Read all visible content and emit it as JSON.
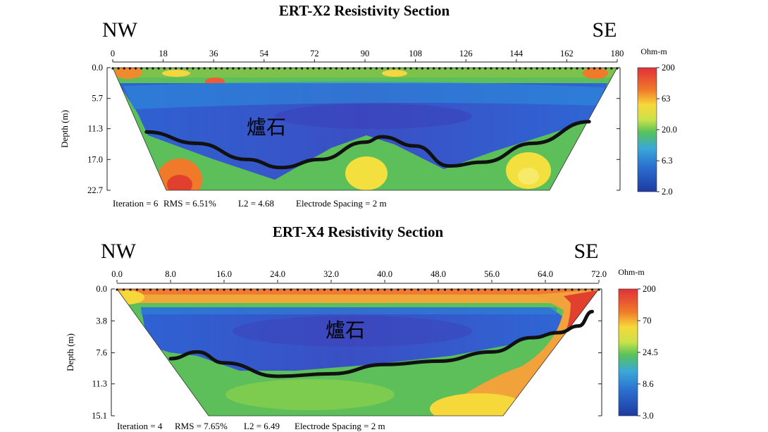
{
  "chart_data": [
    {
      "type": "heatmap",
      "title": "ERT-X2 Resistivity Section",
      "left_direction": "NW",
      "right_direction": "SE",
      "x_ticks": [
        "0",
        "18",
        "36",
        "54",
        "72",
        "90",
        "108",
        "126",
        "144",
        "162",
        "180"
      ],
      "x_range": [
        0,
        180
      ],
      "ylabel": "Depth (m)",
      "y_ticks": [
        "0.0",
        "5.7",
        "11.3",
        "17.0",
        "22.7"
      ],
      "y_range": [
        0.0,
        22.7
      ],
      "colorbar_units": "Ohm-m",
      "colorbar_ticks": [
        "200",
        "63",
        "20.0",
        "6.3",
        "2.0"
      ],
      "colorbar_range": [
        2.0,
        200
      ],
      "colorbar_scale": "log",
      "annotation": "爐石",
      "footer": [
        "Iteration = 6",
        "RMS = 6.51%",
        "L2 = 4.68",
        "Electrode Spacing = 2 m"
      ],
      "boundary_line": {
        "x": [
          12,
          30,
          48,
          60,
          74,
          90,
          96,
          108,
          120,
          132,
          150,
          170
        ],
        "y": [
          11.9,
          14.0,
          17.0,
          18.5,
          17.0,
          13.8,
          12.8,
          14.5,
          18.2,
          17.5,
          14.0,
          10.0
        ]
      }
    },
    {
      "type": "heatmap",
      "title": "ERT-X4 Resistivity Section",
      "left_direction": "NW",
      "right_direction": "SE",
      "x_ticks": [
        "0.0",
        "8.0",
        "16.0",
        "24.0",
        "32.0",
        "40.0",
        "48.0",
        "56.0",
        "64.0",
        "72.0"
      ],
      "x_range": [
        0,
        72
      ],
      "ylabel": "Depth (m)",
      "y_ticks": [
        "0.0",
        "3.8",
        "7.6",
        "11.3",
        "15.1"
      ],
      "y_range": [
        0.0,
        15.1
      ],
      "colorbar_units": "Ohm-m",
      "colorbar_ticks": [
        "200",
        "70",
        "24.5",
        "8.6",
        "3.0"
      ],
      "colorbar_range": [
        3.0,
        200
      ],
      "colorbar_scale": "log",
      "annotation": "爐石",
      "footer": [
        "Iteration = 4",
        "RMS = 7.65%",
        "L2 = 6.49",
        "Electrode Spacing = 2 m"
      ],
      "boundary_line": {
        "x": [
          8,
          12,
          16,
          24,
          32,
          40,
          48,
          56,
          62,
          66,
          69,
          71
        ],
        "y": [
          8.3,
          7.5,
          8.8,
          10.4,
          10.1,
          9.0,
          8.6,
          7.5,
          5.8,
          5.2,
          4.4,
          2.7
        ]
      }
    }
  ]
}
